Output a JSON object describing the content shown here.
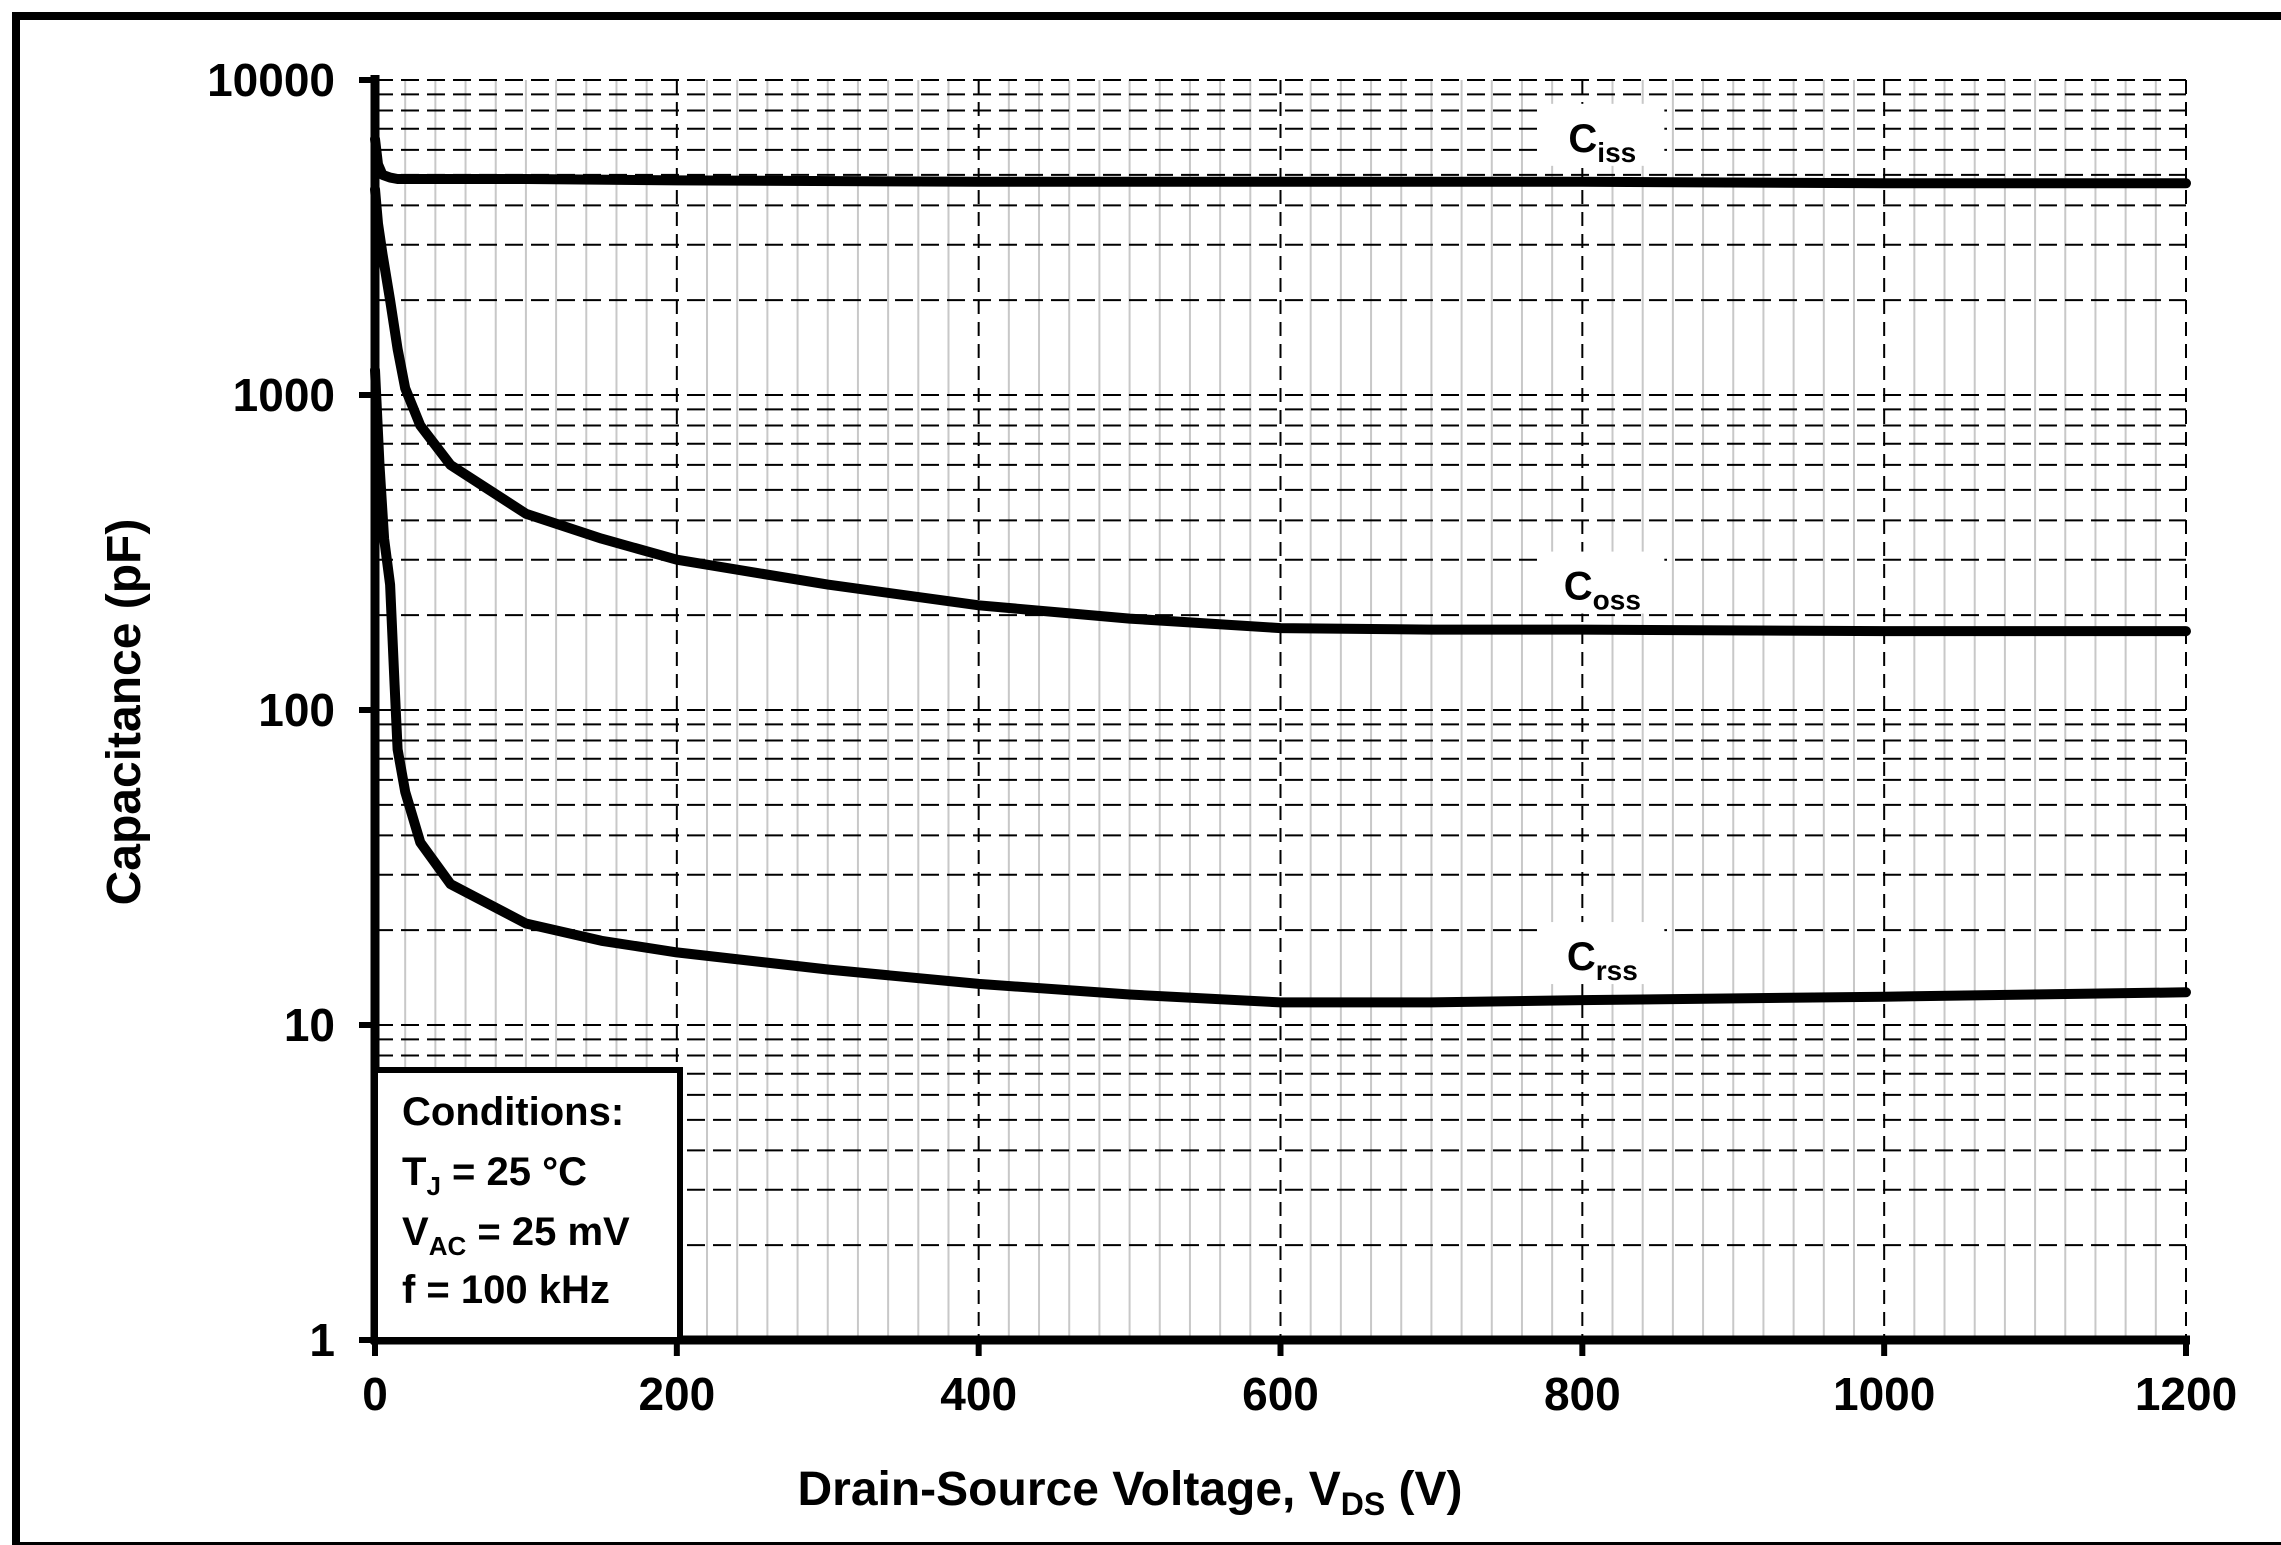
{
  "chart_data": {
    "type": "line",
    "xlabel": {
      "main": "Drain-Source Voltage, V",
      "sub": "DS",
      "unit": " (V)"
    },
    "ylabel": "Capacitance (pF)",
    "xlim": [
      0,
      1200
    ],
    "ylim": [
      1,
      10000
    ],
    "yscale": "log",
    "grid": true,
    "x_ticks": [
      "0",
      "200",
      "400",
      "600",
      "800",
      "1000",
      "1200"
    ],
    "y_ticks": [
      "10000",
      "1000",
      "100",
      "10",
      "1"
    ],
    "series": [
      {
        "name": "C",
        "sub": "iss",
        "x": [
          0,
          2,
          5,
          10,
          15,
          20,
          50,
          100,
          200,
          400,
          600,
          800,
          1000,
          1200
        ],
        "y": [
          6500,
          5400,
          5000,
          4900,
          4850,
          4850,
          4850,
          4850,
          4800,
          4750,
          4750,
          4750,
          4700,
          4700
        ]
      },
      {
        "name": "C",
        "sub": "oss",
        "x": [
          0,
          2,
          5,
          10,
          15,
          20,
          30,
          50,
          100,
          150,
          200,
          300,
          400,
          500,
          600,
          700,
          800,
          1000,
          1200
        ],
        "y": [
          4500,
          3500,
          2800,
          2000,
          1400,
          1050,
          800,
          600,
          420,
          350,
          300,
          250,
          215,
          195,
          182,
          180,
          180,
          178,
          178
        ]
      },
      {
        "name": "C",
        "sub": "rss",
        "x": [
          0,
          3,
          6,
          10,
          13,
          15,
          20,
          30,
          50,
          100,
          150,
          200,
          300,
          400,
          500,
          600,
          700,
          800,
          1000,
          1200
        ],
        "y": [
          1200,
          600,
          350,
          250,
          120,
          75,
          55,
          38,
          28,
          21,
          18.5,
          17,
          15,
          13.5,
          12.5,
          11.8,
          11.8,
          12,
          12.3,
          12.7
        ]
      }
    ],
    "conditions": {
      "heading": "Conditions:",
      "lines": [
        {
          "pre": "T",
          "sub": "J",
          "post": " = 25 °C"
        },
        {
          "pre": "V",
          "sub": "AC",
          "post": " = 25 mV"
        },
        {
          "pre": "f = 100 kHz",
          "sub": "",
          "post": ""
        }
      ]
    }
  }
}
